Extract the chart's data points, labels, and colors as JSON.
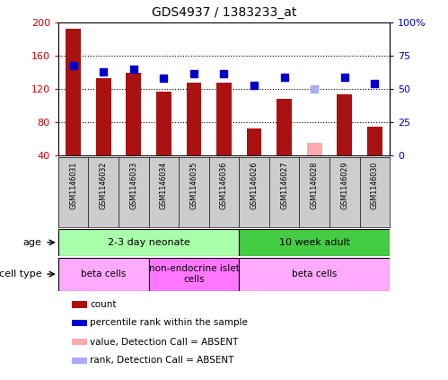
{
  "title": "GDS4937 / 1383233_at",
  "samples": [
    "GSM1146031",
    "GSM1146032",
    "GSM1146033",
    "GSM1146034",
    "GSM1146035",
    "GSM1146036",
    "GSM1146026",
    "GSM1146027",
    "GSM1146028",
    "GSM1146029",
    "GSM1146030"
  ],
  "counts": [
    193,
    133,
    140,
    117,
    128,
    128,
    73,
    108,
    null,
    114,
    75
  ],
  "counts_absent": [
    null,
    null,
    null,
    null,
    null,
    null,
    null,
    null,
    55,
    null,
    null
  ],
  "percentile_ranks": [
    68,
    63,
    65,
    58,
    62,
    62,
    53,
    59,
    null,
    59,
    54
  ],
  "ranks_absent": [
    null,
    null,
    null,
    null,
    null,
    null,
    null,
    null,
    50,
    null,
    null
  ],
  "ylim_left": [
    40,
    200
  ],
  "ylim_right": [
    0,
    100
  ],
  "yticks_left": [
    40,
    80,
    120,
    160,
    200
  ],
  "yticks_right": [
    0,
    25,
    50,
    75,
    100
  ],
  "ytick_labels_left": [
    "40",
    "80",
    "120",
    "160",
    "200"
  ],
  "ytick_labels_right": [
    "0",
    "25",
    "50",
    "75",
    "100%"
  ],
  "bar_color": "#aa1111",
  "bar_absent_color": "#ffaaaa",
  "dot_color": "#0000cc",
  "dot_absent_color": "#aaaaff",
  "age_groups": [
    {
      "label": "2-3 day neonate",
      "start": 0,
      "end": 6,
      "color": "#aaffaa"
    },
    {
      "label": "10 week adult",
      "start": 6,
      "end": 11,
      "color": "#44cc44"
    }
  ],
  "cell_type_groups": [
    {
      "label": "beta cells",
      "start": 0,
      "end": 3,
      "color": "#ffaaff"
    },
    {
      "label": "non-endocrine islet\ncells",
      "start": 3,
      "end": 6,
      "color": "#ff77ff"
    },
    {
      "label": "beta cells",
      "start": 6,
      "end": 11,
      "color": "#ffaaff"
    }
  ],
  "legend_items": [
    {
      "label": "count",
      "color": "#aa1111"
    },
    {
      "label": "percentile rank within the sample",
      "color": "#0000cc"
    },
    {
      "label": "value, Detection Call = ABSENT",
      "color": "#ffaaaa"
    },
    {
      "label": "rank, Detection Call = ABSENT",
      "color": "#aaaaff"
    }
  ],
  "bg_color": "#ffffff",
  "bar_width": 0.5,
  "dot_size": 40,
  "grid_color": "#000000"
}
